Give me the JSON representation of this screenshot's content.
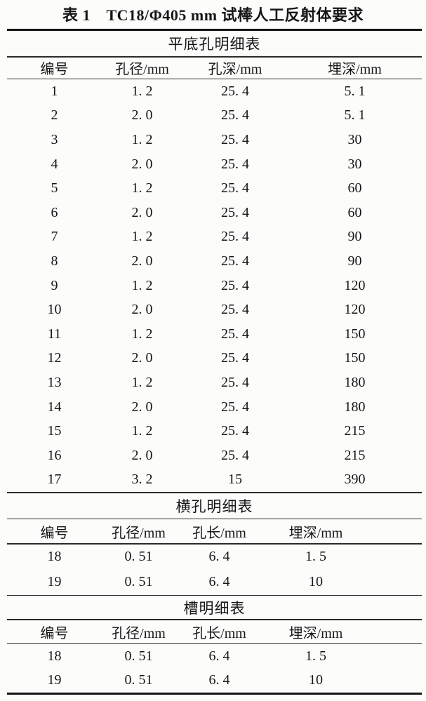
{
  "title": "表 1　TC18/Φ405 mm 试棒人工反射体要求",
  "sections": [
    {
      "name": "平底孔明细表",
      "columns": [
        "编号",
        "孔径/mm",
        "孔深/mm",
        "埋深/mm"
      ],
      "rows": [
        [
          "1",
          "1. 2",
          "25. 4",
          "5. 1"
        ],
        [
          "2",
          "2. 0",
          "25. 4",
          "5. 1"
        ],
        [
          "3",
          "1. 2",
          "25. 4",
          "30"
        ],
        [
          "4",
          "2. 0",
          "25. 4",
          "30"
        ],
        [
          "5",
          "1. 2",
          "25. 4",
          "60"
        ],
        [
          "6",
          "2. 0",
          "25. 4",
          "60"
        ],
        [
          "7",
          "1. 2",
          "25. 4",
          "90"
        ],
        [
          "8",
          "2. 0",
          "25. 4",
          "90"
        ],
        [
          "9",
          "1. 2",
          "25. 4",
          "120"
        ],
        [
          "10",
          "2. 0",
          "25. 4",
          "120"
        ],
        [
          "11",
          "1. 2",
          "25. 4",
          "150"
        ],
        [
          "12",
          "2. 0",
          "25. 4",
          "150"
        ],
        [
          "13",
          "1. 2",
          "25. 4",
          "180"
        ],
        [
          "14",
          "2. 0",
          "25. 4",
          "180"
        ],
        [
          "15",
          "1. 2",
          "25. 4",
          "215"
        ],
        [
          "16",
          "2. 0",
          "25. 4",
          "215"
        ],
        [
          "17",
          "3. 2",
          "15",
          "390"
        ]
      ]
    },
    {
      "name": "横孔明细表",
      "columns": [
        "编号",
        "孔径/mm",
        "孔长/mm",
        "埋深/mm"
      ],
      "rows": [
        [
          "18",
          "0. 51",
          "6. 4",
          "1. 5"
        ],
        [
          "19",
          "0. 51",
          "6. 4",
          "10"
        ]
      ]
    },
    {
      "name": "槽明细表",
      "columns": [
        "编号",
        "孔径/mm",
        "孔长/mm",
        "埋深/mm"
      ],
      "rows": [
        [
          "18",
          "0. 51",
          "6. 4",
          "1. 5"
        ],
        [
          "19",
          "0. 51",
          "6. 4",
          "10"
        ]
      ]
    }
  ],
  "colors": {
    "background": "#fcfcfb",
    "text": "#161616",
    "rule_thick": "#141414",
    "rule_thin": "#2b2b2b"
  }
}
